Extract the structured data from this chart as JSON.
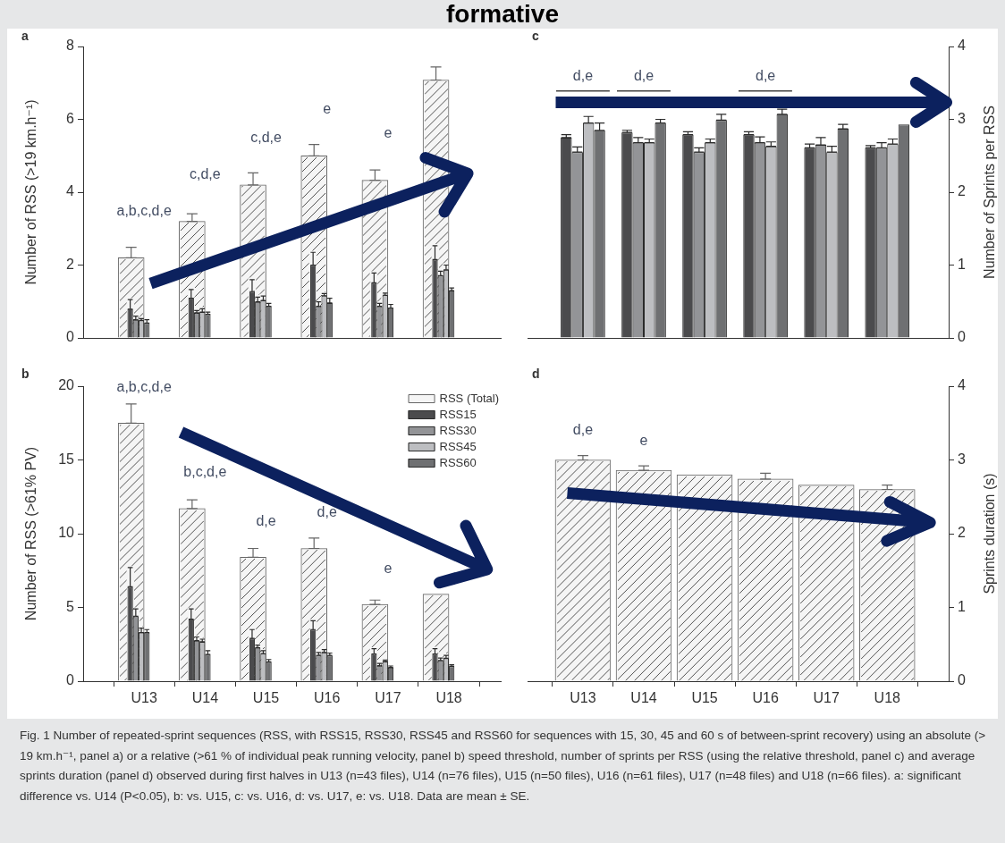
{
  "chart_data": [
    {
      "type": "bar",
      "title": "a",
      "ylabel": "Number of RSS (>19 km.h⁻¹)",
      "categories": [
        "U13",
        "U14",
        "U15",
        "U16",
        "U17",
        "U18"
      ],
      "series": [
        {
          "color": "#f5f5f5",
          "values": [
            2.2,
            3.2,
            4.2,
            5.0,
            4.33,
            7.08
          ],
          "errors": [
            [
              2.2,
              2.49
            ],
            [
              3.2,
              3.41
            ],
            [
              4.2,
              4.53
            ],
            [
              5.0,
              5.31
            ],
            [
              4.33,
              4.61
            ],
            [
              7.08,
              7.44
            ]
          ]
        },
        {
          "color": "#4b4b4d",
          "values": [
            0.79,
            1.09,
            1.27,
            2.0,
            1.51,
            2.15
          ],
          "errors": [
            [
              0.79,
              1.05
            ],
            [
              1.09,
              1.33
            ],
            [
              1.27,
              1.6
            ],
            [
              2.0,
              2.35
            ],
            [
              1.51,
              1.78
            ],
            [
              2.15,
              2.53
            ]
          ]
        },
        {
          "color": "#939497",
          "values": [
            0.5,
            0.69,
            0.99,
            0.87,
            0.87,
            1.71
          ],
          "errors": [
            [
              0.5,
              0.6
            ],
            [
              0.69,
              0.75
            ],
            [
              0.99,
              1.12
            ],
            [
              0.87,
              0.99
            ],
            [
              0.87,
              0.95
            ],
            [
              1.71,
              1.83
            ]
          ]
        },
        {
          "color": "#bdbec1",
          "values": [
            0.48,
            0.71,
            1.03,
            1.16,
            1.17,
            1.87
          ],
          "errors": [
            [
              0.48,
              0.53
            ],
            [
              0.71,
              0.8
            ],
            [
              1.03,
              1.15
            ],
            [
              1.16,
              1.22
            ],
            [
              1.17,
              1.23
            ],
            [
              1.87,
              2.0
            ]
          ]
        },
        {
          "color": "#6f7072",
          "values": [
            0.41,
            0.65,
            0.87,
            0.96,
            0.82,
            1.3
          ],
          "errors": [
            [
              0.41,
              0.5
            ],
            [
              0.65,
              0.71
            ],
            [
              0.87,
              0.95
            ],
            [
              0.96,
              1.09
            ],
            [
              0.82,
              0.92
            ],
            [
              1.3,
              1.37
            ]
          ]
        }
      ],
      "ylim": [
        0,
        8
      ],
      "yticks": [
        0,
        2,
        4,
        6,
        8
      ],
      "tick_labels": "y",
      "annotations": [
        "formative",
        {
          "text": "a,b,c,d,e",
          "x": "U13",
          "y": 2.2
        },
        {
          "text": "c,d,e",
          "x": "U14",
          "y": 3.2
        },
        {
          "text": "c,d,e",
          "x": "U15",
          "y": 4.2
        },
        {
          "text": "e",
          "x": "U16",
          "y": 5.0
        },
        {
          "text": "e",
          "x": "U17",
          "y": 4.33
        }
      ]
    },
    {
      "type": "bar",
      "title": "c",
      "y2label": "Number of Sprints per RSS",
      "categories": [
        "U13",
        "U14",
        "U15",
        "U16",
        "U17",
        "U18"
      ],
      "series": [
        {
          "color": "#4b4b4d",
          "axis": "y2",
          "values": [
            2.75,
            2.82,
            2.79,
            2.79,
            2.61,
            2.61
          ],
          "errors": [
            [
              2.75,
              2.79
            ],
            [
              2.82,
              2.85
            ],
            [
              2.79,
              2.83
            ],
            [
              2.79,
              2.83
            ],
            [
              2.61,
              2.66
            ],
            [
              2.61,
              2.64
            ]
          ]
        },
        {
          "color": "#939497",
          "axis": "y2",
          "values": [
            2.55,
            2.68,
            2.55,
            2.68,
            2.65,
            2.61
          ],
          "errors": [
            [
              2.55,
              2.62
            ],
            [
              2.68,
              2.75
            ],
            [
              2.55,
              2.61
            ],
            [
              2.68,
              2.76
            ],
            [
              2.65,
              2.75
            ],
            [
              2.61,
              2.68
            ]
          ]
        },
        {
          "color": "#bdbec1",
          "axis": "y2",
          "values": [
            2.95,
            2.68,
            2.68,
            2.63,
            2.55,
            2.66
          ],
          "errors": [
            [
              2.95,
              3.04
            ],
            [
              2.68,
              2.73
            ],
            [
              2.68,
              2.73
            ],
            [
              2.63,
              2.69
            ],
            [
              2.55,
              2.63
            ],
            [
              2.66,
              2.73
            ]
          ]
        },
        {
          "color": "#6f7072",
          "axis": "y2",
          "values": [
            2.85,
            2.95,
            2.99,
            3.07,
            2.87,
            2.93
          ],
          "errors": [
            [
              2.85,
              2.95
            ],
            [
              2.95,
              3.0
            ],
            [
              2.99,
              3.07
            ],
            [
              3.07,
              3.14
            ],
            [
              2.87,
              2.93
            ],
            null
          ]
        }
      ],
      "y2lim": [
        0,
        4
      ],
      "y2ticks": [
        0,
        1,
        2,
        3,
        4
      ],
      "tick_labels": "y",
      "annotations": [
        "d,e",
        "d,e",
        "d,e"
      ]
    },
    {
      "type": "bar",
      "title": "b",
      "ylabel": "Number of RSS (>61% PV)",
      "categories": [
        "U13",
        "U14",
        "U15",
        "U16",
        "U17",
        "U18"
      ],
      "series": [
        {
          "name": "RSS (Total)",
          "color": "#f5f5f5",
          "values": [
            17.5,
            11.7,
            8.4,
            9.0,
            5.2,
            5.9
          ],
          "errors": [
            [
              17.5,
              18.8
            ],
            [
              11.7,
              12.3
            ],
            [
              8.4,
              9.0
            ],
            [
              9.0,
              9.7
            ],
            [
              5.2,
              5.5
            ],
            null
          ]
        },
        {
          "name": "RSS15",
          "color": "#4b4b4d",
          "values": [
            6.4,
            4.2,
            2.9,
            3.5,
            1.85,
            1.85
          ],
          "errors": [
            [
              6.4,
              7.7
            ],
            [
              4.2,
              4.9
            ],
            [
              2.9,
              3.5
            ],
            [
              3.5,
              4.1
            ],
            [
              1.85,
              2.2
            ],
            [
              1.85,
              2.2
            ]
          ]
        },
        {
          "name": "RSS30",
          "color": "#939497",
          "values": [
            4.4,
            2.75,
            2.27,
            1.75,
            1.05,
            1.41
          ],
          "errors": [
            [
              4.4,
              4.9
            ],
            [
              2.75,
              3.0
            ],
            [
              2.27,
              2.45
            ],
            [
              1.75,
              1.95
            ],
            [
              1.05,
              1.21
            ],
            [
              1.41,
              1.57
            ]
          ]
        },
        {
          "name": "RSS45",
          "color": "#bdbec1",
          "values": [
            3.3,
            2.67,
            1.87,
            1.95,
            1.34,
            1.55
          ],
          "errors": [
            [
              3.3,
              3.6
            ],
            [
              2.67,
              2.85
            ],
            [
              1.87,
              2.07
            ],
            [
              1.95,
              2.15
            ],
            [
              1.34,
              1.44
            ],
            [
              1.55,
              1.75
            ]
          ]
        },
        {
          "name": "RSS60",
          "color": "#6f7072",
          "values": [
            3.3,
            1.81,
            1.31,
            1.75,
            0.93,
            1.01
          ],
          "errors": [
            [
              3.3,
              3.5
            ],
            [
              1.81,
              2.07
            ],
            [
              1.31,
              1.47
            ],
            [
              1.75,
              1.91
            ],
            [
              0.93,
              1.03
            ],
            [
              1.01,
              1.11
            ]
          ]
        }
      ],
      "ylim": [
        0,
        20
      ],
      "yticks": [
        0,
        5,
        10,
        15,
        20
      ],
      "legend": "top right",
      "annotations": [
        {
          "text": "a,b,c,d,e",
          "x": "U13",
          "y": 17.5
        },
        {
          "text": "b,c,d,e",
          "x": "U14",
          "y": 11.7
        },
        {
          "text": "d,e",
          "x": "U15",
          "y": 8.4
        },
        {
          "text": "d,e",
          "x": "U16",
          "y": 9.0
        },
        {
          "text": "e",
          "x": "U17",
          "y": 5.2
        }
      ]
    },
    {
      "type": "bar",
      "title": "d",
      "y2label": "Sprints duration (s)",
      "categories": [
        "U13",
        "U14",
        "U15",
        "U16",
        "U17",
        "U18"
      ],
      "series": [
        {
          "color": "#f5f5f5",
          "axis": "y2",
          "values": [
            3.0,
            2.86,
            2.8,
            2.74,
            2.66,
            2.6
          ],
          "errors": [
            [
              3.0,
              3.06
            ],
            [
              2.86,
              2.92
            ],
            null,
            [
              2.74,
              2.82
            ],
            null,
            [
              2.6,
              2.66
            ]
          ]
        }
      ],
      "y2lim": [
        0,
        4
      ],
      "y2ticks": [
        0,
        1,
        2,
        3,
        4
      ],
      "annotations": [
        "d,e",
        "e",
        "Fig. 1 Number of repeated-sprint sequences (RSS, with RSS15, RSS30, RSS45 and RSS60 for sequences with 15, 30, 45 and 60 s of between-sprint recovery) using an absolute (> 19 km.h⁻¹, panel a) or a relative (>61 % of individual peak running velocity, panel b) speed threshold, number of sprints per RSS (using the relative threshold, panel c) and average sprints duration (panel d) observed during first halves in U13 (n=43 files), U14 (n=76 files), U15 (n=50 files), U16 (n=61 files), U17 (n=48 files) and U18 (n=66 files). a: significant difference vs. U14 (P<0.05), b: vs. U15, c: vs. U16, d: vs. U17, e: vs. U18. Data are mean ± SE."
      ]
    }
  ]
}
